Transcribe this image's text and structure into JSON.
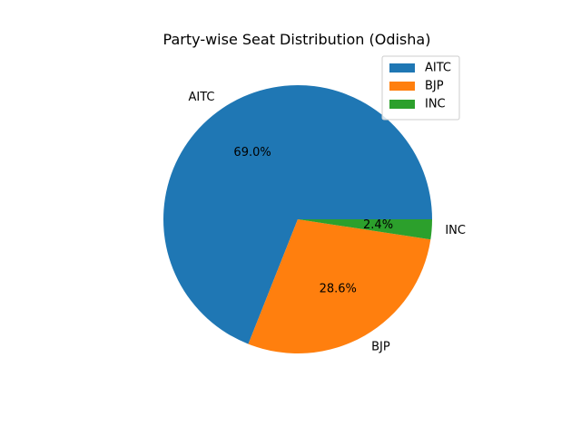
{
  "chart_data": {
    "type": "pie",
    "title": "Party-wise Seat Distribution (Odisha)",
    "categories": [
      "AITC",
      "BJP",
      "INC"
    ],
    "values": [
      69.0,
      28.6,
      2.4
    ],
    "percent_labels": [
      "69.0%",
      "28.6%",
      "2.4%"
    ],
    "colors": [
      "#1f77b4",
      "#ff7f0e",
      "#2ca02c"
    ],
    "legend": {
      "placement": "top-right",
      "entries": [
        "AITC",
        "BJP",
        "INC"
      ]
    }
  }
}
